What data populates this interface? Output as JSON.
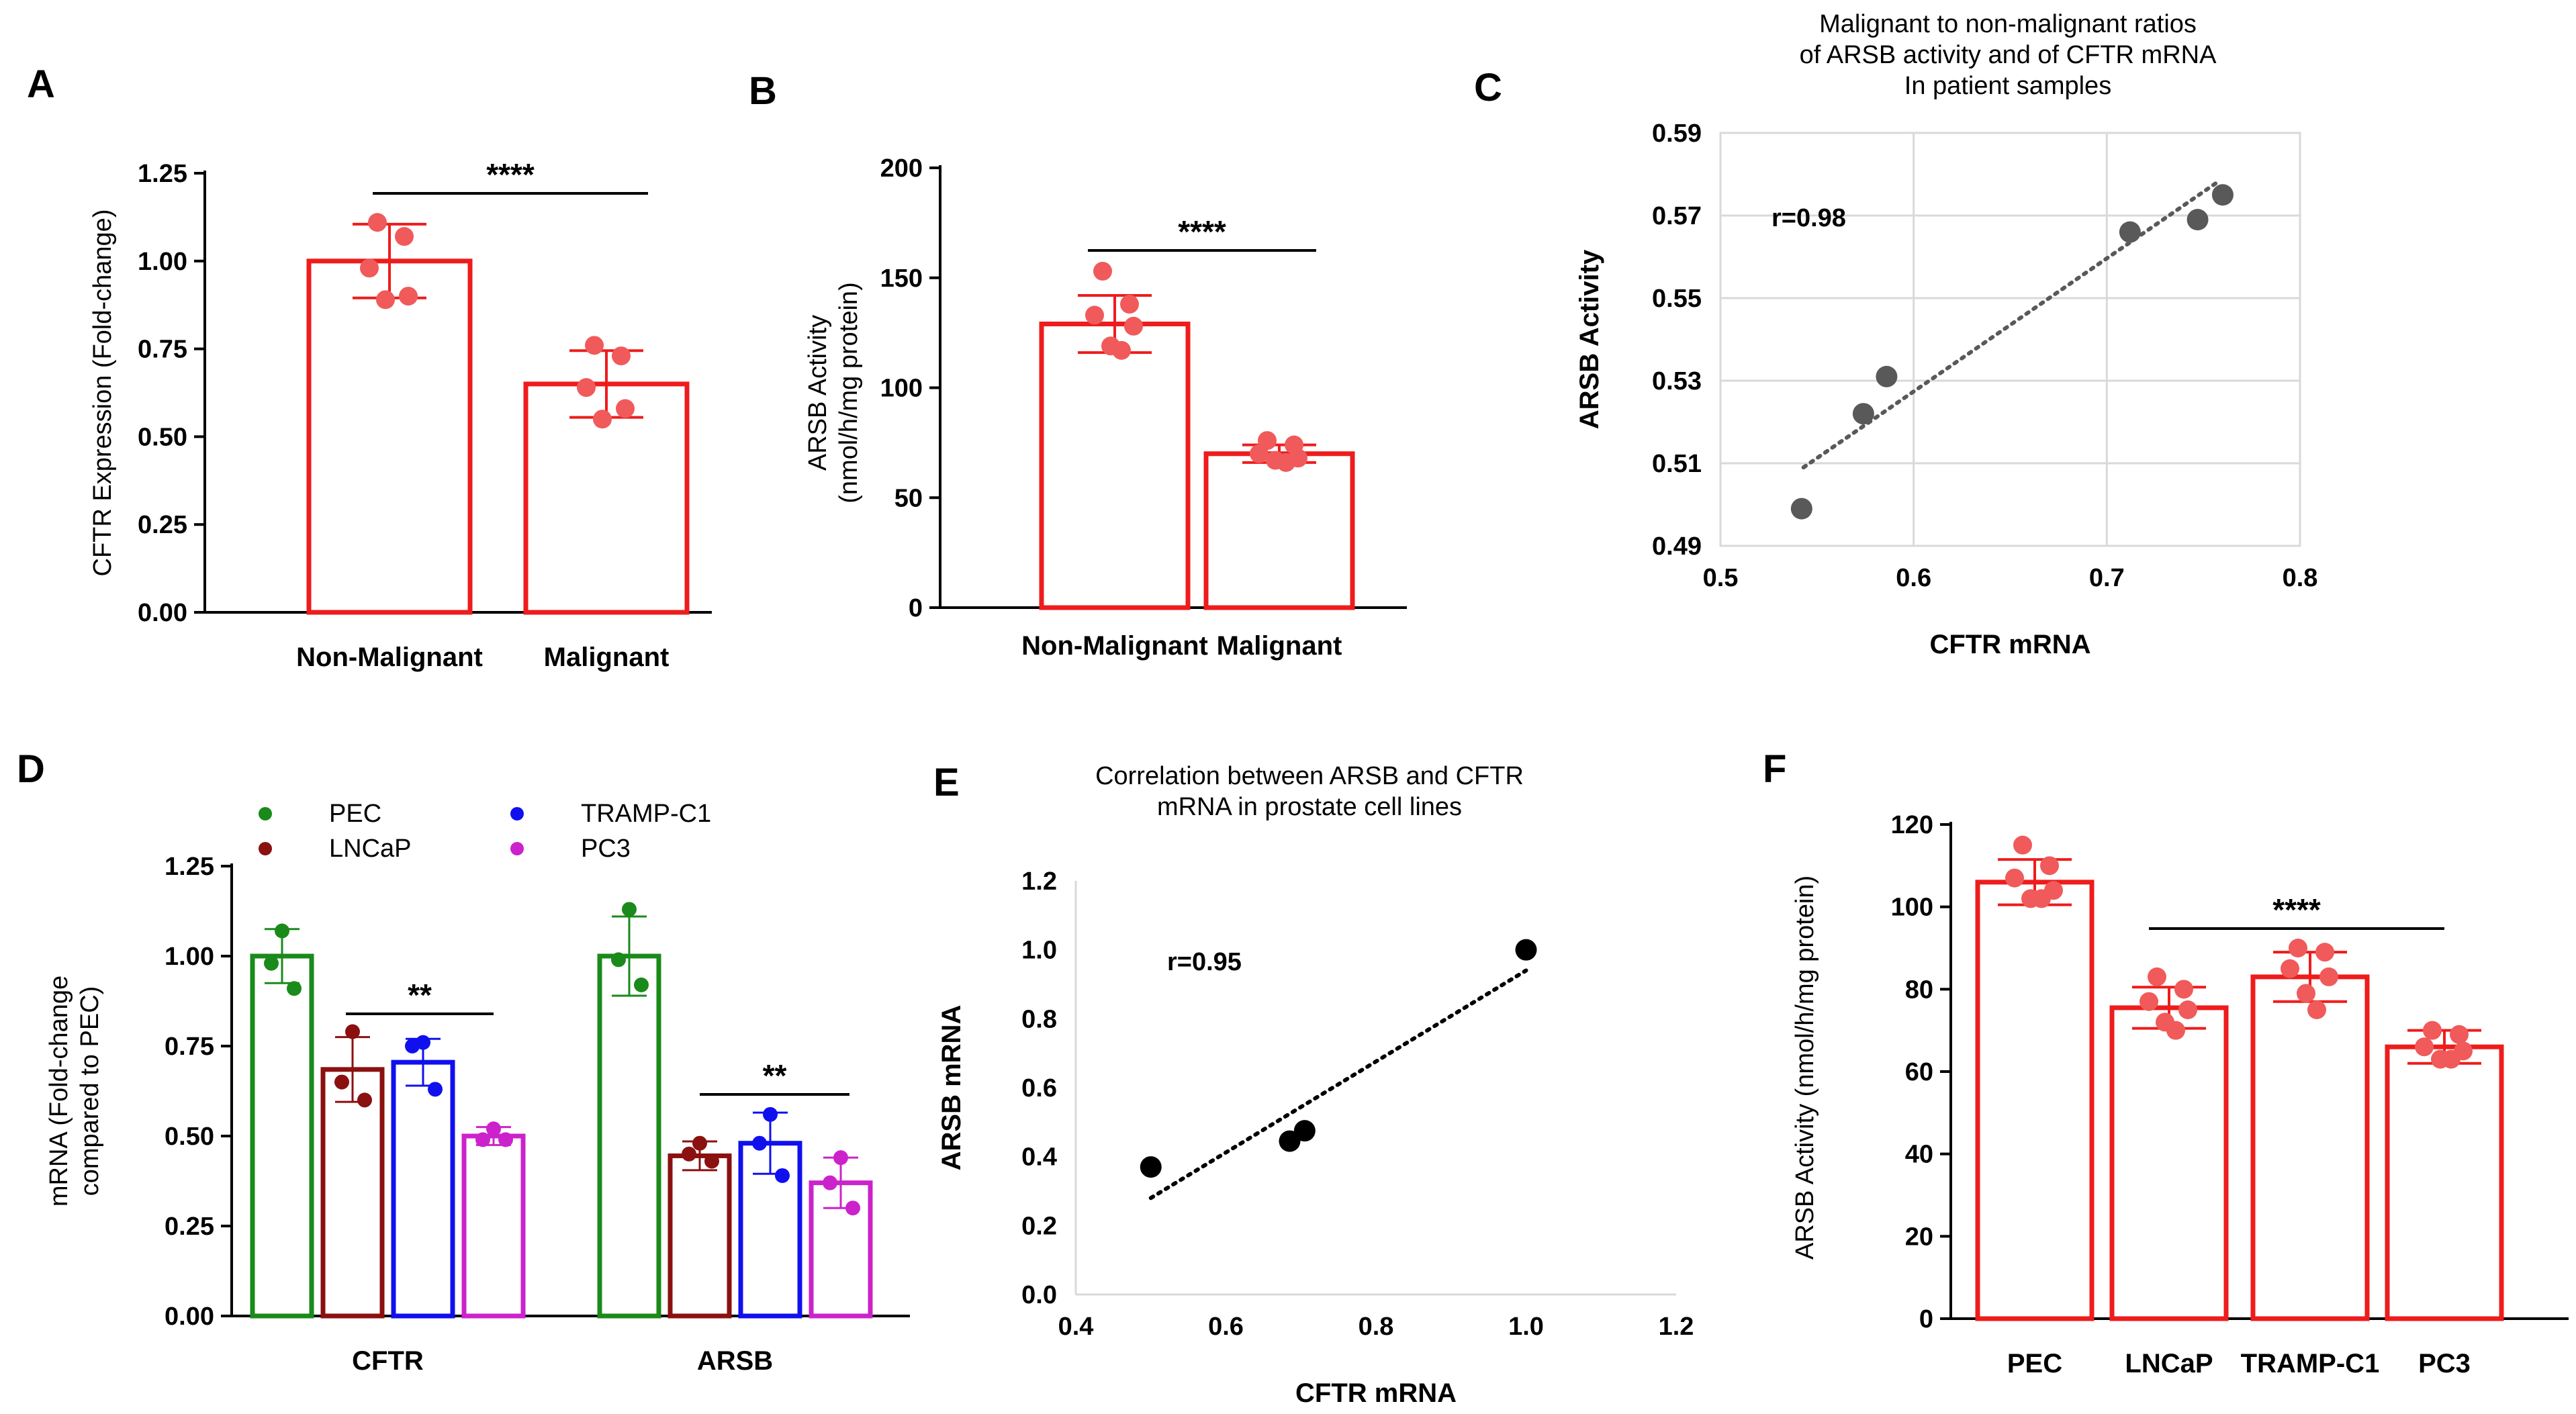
{
  "chart_data": [
    {
      "panel": "A",
      "type": "bar",
      "ylabel": "CFTR Expression (Fold-change)",
      "ylim": [
        0,
        1.25
      ],
      "yticks": [
        "0.00",
        "0.25",
        "0.50",
        "0.75",
        "1.00",
        "1.25"
      ],
      "categories": [
        "Non-Malignant",
        "Malignant"
      ],
      "values": [
        1.0,
        0.65
      ],
      "sd": [
        0.105,
        0.095
      ],
      "points": [
        [
          1.11,
          1.07,
          0.98,
          0.9,
          0.89
        ],
        [
          0.76,
          0.73,
          0.64,
          0.58,
          0.55
        ]
      ],
      "color": "#ee1c1c",
      "point_color": "#f05a5a",
      "significance": "****"
    },
    {
      "panel": "B",
      "type": "bar",
      "ylabel": "ARSB Activity\n(nmol/h/mg protein)",
      "ylim": [
        0,
        200
      ],
      "yticks": [
        "0",
        "50",
        "100",
        "150",
        "200"
      ],
      "categories": [
        "Non-Malignant",
        "Malignant"
      ],
      "values": [
        129,
        70
      ],
      "sd": [
        13,
        4
      ],
      "points": [
        [
          153,
          138,
          133,
          128,
          119,
          117
        ],
        [
          76,
          74,
          70,
          68,
          67,
          66
        ]
      ],
      "color": "#ee1c1c",
      "point_color": "#f05a5a",
      "significance": "****"
    },
    {
      "panel": "C",
      "type": "scatter",
      "title": "Malignant to non-malignant ratios\nof ARSB activity and of CFTR mRNA\nIn patient samples",
      "xlabel": "CFTR mRNA",
      "ylabel": "ARSB Activity",
      "xlim": [
        0.5,
        0.8
      ],
      "ylim": [
        0.49,
        0.59
      ],
      "xticks": [
        "0.5",
        "0.6",
        "0.7",
        "0.8"
      ],
      "yticks": [
        "0.49",
        "0.51",
        "0.53",
        "0.55",
        "0.57",
        "0.59"
      ],
      "x": [
        0.542,
        0.574,
        0.586,
        0.712,
        0.747,
        0.76
      ],
      "y": [
        0.499,
        0.522,
        0.531,
        0.566,
        0.569,
        0.575
      ],
      "fit": [
        [
          0.543,
          0.509
        ],
        [
          0.757,
          0.578
        ]
      ],
      "annotation": "r=0.98",
      "grid": true,
      "color": "#595959"
    },
    {
      "panel": "D",
      "type": "bar",
      "ylabel": "mRNA (Fold-change\ncompared to PEC)",
      "ylim": [
        0,
        1.25
      ],
      "yticks": [
        "0.00",
        "0.25",
        "0.50",
        "0.75",
        "1.00",
        "1.25"
      ],
      "categories": [
        "CFTR",
        "ARSB"
      ],
      "legend_order": [
        [
          "PEC",
          "TRAMP-C1"
        ],
        [
          "LNCaP",
          "PC3"
        ]
      ],
      "series": [
        {
          "name": "PEC",
          "color": "#1a8a1a",
          "values": [
            1.0,
            1.0
          ],
          "sd": [
            0.075,
            0.11
          ],
          "points": [
            [
              1.07,
              0.98,
              0.91
            ],
            [
              1.13,
              0.99,
              0.92
            ]
          ]
        },
        {
          "name": "LNCaP",
          "color": "#8b1010",
          "values": [
            0.685,
            0.445
          ],
          "sd": [
            0.09,
            0.04
          ],
          "points": [
            [
              0.79,
              0.65,
              0.6
            ],
            [
              0.48,
              0.45,
              0.43
            ]
          ]
        },
        {
          "name": "TRAMP-C1",
          "color": "#1010ee",
          "values": [
            0.705,
            0.48
          ],
          "sd": [
            0.065,
            0.085
          ],
          "points": [
            [
              0.76,
              0.75,
              0.63
            ],
            [
              0.56,
              0.48,
              0.39
            ]
          ]
        },
        {
          "name": "PC3",
          "color": "#cc22cc",
          "values": [
            0.5,
            0.37
          ],
          "sd": [
            0.025,
            0.07
          ],
          "points": [
            [
              0.52,
              0.49,
              0.49
            ],
            [
              0.44,
              0.37,
              0.3
            ]
          ]
        }
      ],
      "significance": [
        {
          "group": "CFTR",
          "label": "**"
        },
        {
          "group": "ARSB",
          "label": "**"
        }
      ]
    },
    {
      "panel": "E",
      "type": "scatter",
      "title": "Correlation between  ARSB and CFTR\nmRNA  in prostate cell lines",
      "xlabel": "CFTR mRNA",
      "ylabel": "ARSB mRNA",
      "xlim": [
        0.4,
        1.2
      ],
      "ylim": [
        0.0,
        1.2
      ],
      "xticks": [
        "0.4",
        "0.6",
        "0.8",
        "1.0",
        "1.2"
      ],
      "yticks": [
        "0.0",
        "0.2",
        "0.4",
        "0.6",
        "0.8",
        "1.0",
        "1.2"
      ],
      "x": [
        0.5,
        0.685,
        0.705,
        1.0
      ],
      "y": [
        0.37,
        0.445,
        0.475,
        1.0
      ],
      "fit": [
        [
          0.5,
          0.28
        ],
        [
          1.0,
          0.94
        ]
      ],
      "annotation": "r=0.95",
      "color": "#000000"
    },
    {
      "panel": "F",
      "type": "bar",
      "ylabel": "ARSB Activity (nmol/h/mg protein)",
      "ylim": [
        0,
        120
      ],
      "yticks": [
        "0",
        "20",
        "40",
        "60",
        "80",
        "100",
        "120"
      ],
      "categories": [
        "PEC",
        "LNCaP",
        "TRAMP-C1",
        "PC3"
      ],
      "values": [
        106,
        75.5,
        83,
        66
      ],
      "sd": [
        5.5,
        5,
        6,
        4
      ],
      "points": [
        [
          115,
          110,
          107,
          104,
          102,
          102
        ],
        [
          83,
          80,
          77,
          75,
          72,
          70
        ],
        [
          90,
          89,
          85,
          83,
          79,
          75
        ],
        [
          70,
          69,
          66,
          65,
          63,
          63
        ]
      ],
      "color": "#ee1c1c",
      "point_color": "#f05a5a",
      "significance": "****"
    }
  ]
}
